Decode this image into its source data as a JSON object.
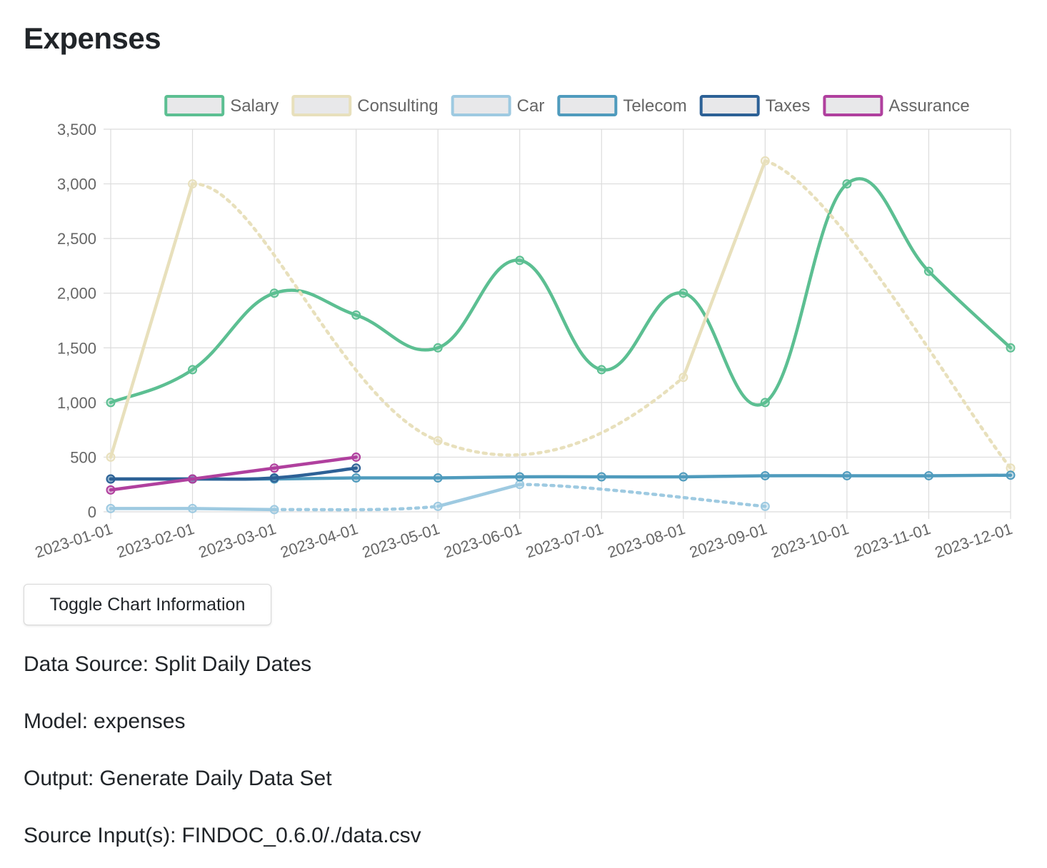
{
  "page": {
    "title": "Expenses",
    "toggle_label": "Toggle Chart Information",
    "info": [
      {
        "label": "Data Source:",
        "value": "Split Daily Dates"
      },
      {
        "label": "Model:",
        "value": "expenses"
      },
      {
        "label": "Output:",
        "value": "Generate Daily Data Set"
      },
      {
        "label": "Source Input(s):",
        "value": "FINDOC_0.6.0/./data.csv"
      }
    ]
  },
  "chart_data": {
    "type": "line",
    "title": "",
    "xlabel": "",
    "ylabel": "",
    "ylim": [
      0,
      3500
    ],
    "yticks": [
      0,
      500,
      1000,
      1500,
      2000,
      2500,
      3000,
      3500
    ],
    "ytick_labels": [
      "0",
      "500",
      "1,000",
      "1,500",
      "2,000",
      "2,500",
      "3,000",
      "3,500"
    ],
    "x": [
      "2023-01-01",
      "2023-02-01",
      "2023-03-01",
      "2023-04-01",
      "2023-05-01",
      "2023-06-01",
      "2023-07-01",
      "2023-08-01",
      "2023-09-01",
      "2023-10-01",
      "2023-11-01",
      "2023-12-01"
    ],
    "grid": true,
    "legend_position": "top",
    "legend_box_fill": "#e8e8ea",
    "series": [
      {
        "name": "Salary",
        "color": "#5cbf92",
        "values": [
          1000,
          1300,
          2000,
          1800,
          1500,
          2300,
          1300,
          2000,
          1000,
          3000,
          2200,
          1500
        ],
        "gap_dash": false
      },
      {
        "name": "Consulting",
        "color": "#e8e0bc",
        "values": [
          500,
          3000,
          null,
          null,
          650,
          null,
          null,
          1230,
          3210,
          null,
          null,
          400
        ],
        "gap_dash": true
      },
      {
        "name": "Car",
        "color": "#9ecae1",
        "values": [
          30,
          30,
          20,
          null,
          50,
          250,
          null,
          null,
          50,
          null,
          null,
          null
        ],
        "gap_dash": true
      },
      {
        "name": "Telecom",
        "color": "#4f9bbd",
        "values": [
          300,
          300,
          300,
          310,
          310,
          320,
          320,
          320,
          330,
          330,
          330,
          335
        ],
        "gap_dash": false
      },
      {
        "name": "Taxes",
        "color": "#2d6196",
        "values": [
          300,
          300,
          310,
          400,
          null,
          null,
          null,
          null,
          null,
          null,
          null,
          null
        ],
        "gap_dash": false
      },
      {
        "name": "Assurance",
        "color": "#b0409e",
        "values": [
          200,
          300,
          400,
          500,
          null,
          null,
          null,
          null,
          null,
          null,
          null,
          null
        ],
        "gap_dash": false
      }
    ]
  }
}
